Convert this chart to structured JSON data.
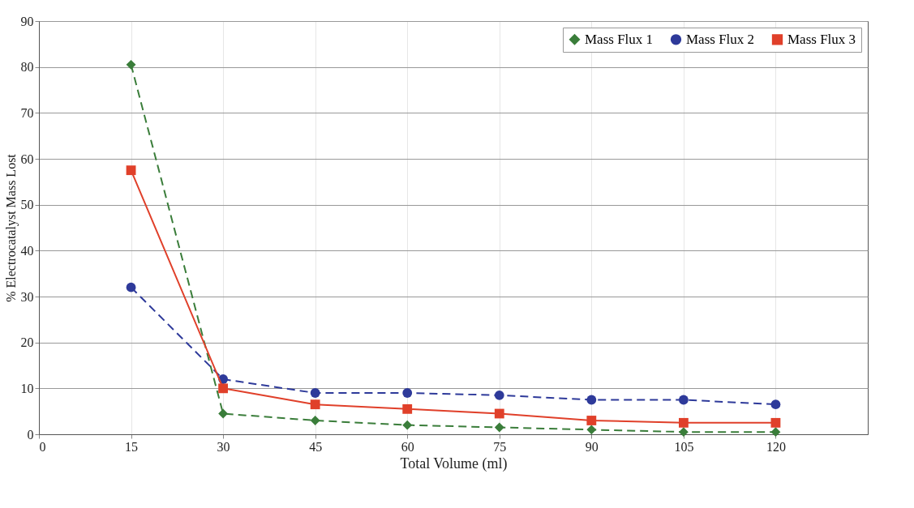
{
  "chart_data": {
    "type": "line",
    "xlabel": "Total Volume (ml)",
    "ylabel": "% Electrocatalyst Mass Lost",
    "x": [
      15,
      30,
      45,
      60,
      75,
      90,
      105,
      120
    ],
    "xlim": [
      0,
      135
    ],
    "xticks": [
      0,
      15,
      30,
      45,
      60,
      75,
      90,
      105,
      120
    ],
    "ylim": [
      0,
      90
    ],
    "yticks": [
      0,
      10,
      20,
      30,
      40,
      50,
      60,
      70,
      80,
      90
    ],
    "grid": true,
    "legend": "top right",
    "series": [
      {
        "name": "Mass Flux 1",
        "color": "#3a7d3a",
        "marker": "diamond",
        "line_style": "dashed",
        "values": [
          80.5,
          4.5,
          3,
          2,
          1.5,
          1,
          0.5,
          0.5
        ]
      },
      {
        "name": "Mass Flux 2",
        "color": "#2e3a9a",
        "marker": "circle",
        "line_style": "dashed",
        "values": [
          32,
          12,
          9,
          9,
          8.5,
          7.5,
          7.5,
          6.5
        ]
      },
      {
        "name": "Mass Flux 3",
        "color": "#e0402a",
        "marker": "square",
        "line_style": "solid",
        "values": [
          57.5,
          10,
          6.5,
          5.5,
          4.5,
          3,
          2.5,
          2.5
        ]
      }
    ]
  }
}
